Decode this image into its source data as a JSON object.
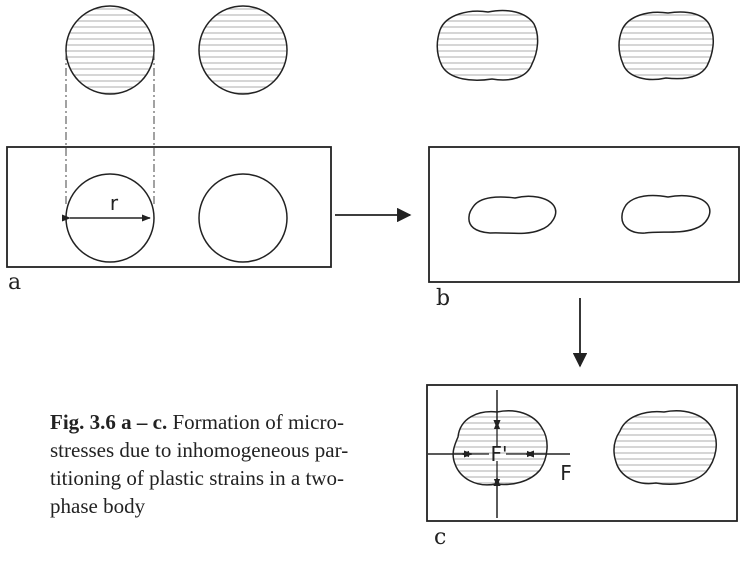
{
  "panels": {
    "a": {
      "label": "a",
      "dimension_label": "r"
    },
    "b": {
      "label": "b"
    },
    "c": {
      "label": "c",
      "force_label_inner": "F'",
      "force_label_outer": "F"
    }
  },
  "caption": {
    "figure_id": "Fig. 3.6 a – c.",
    "lines": [
      "Formation of micro-",
      "stresses due to inhomogeneous par-",
      "titioning of plastic strains in a two-",
      "phase body"
    ]
  },
  "colors": {
    "ink": "#222222",
    "hatch": "#bbbbbb"
  }
}
